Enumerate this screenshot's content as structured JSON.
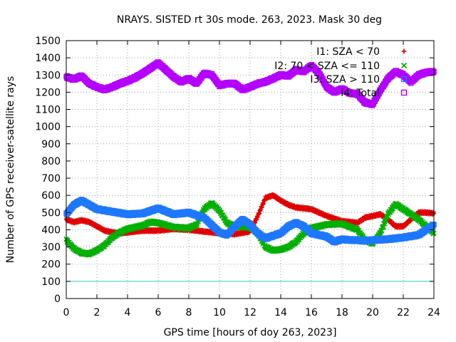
{
  "chart_data": {
    "type": "scatter",
    "title": "NRAYS. SISTED rt 30s mode. 263, 2023. Mask 30 deg",
    "xlabel": "GPS time [hours of doy 263, 2023]",
    "ylabel": "Number of GPS receiver-satellite rays",
    "xlim": [
      0,
      24
    ],
    "ylim": [
      0,
      1500
    ],
    "x_ticks": [
      0,
      2,
      4,
      6,
      8,
      10,
      12,
      14,
      16,
      18,
      20,
      22,
      24
    ],
    "y_ticks": [
      0,
      100,
      200,
      300,
      400,
      500,
      600,
      700,
      800,
      900,
      1000,
      1100,
      1200,
      1300,
      1400,
      1500
    ],
    "grid": true,
    "legend_position": "top-right",
    "threshold_line": {
      "y": 100,
      "color": "#33cccc"
    },
    "series": [
      {
        "name": "I1: SZA < 70",
        "marker": "+",
        "color": "#e00000",
        "points": [
          [
            0,
            460
          ],
          [
            0.5,
            445
          ],
          [
            1,
            455
          ],
          [
            1.5,
            445
          ],
          [
            2,
            420
          ],
          [
            2.5,
            395
          ],
          [
            3,
            385
          ],
          [
            3.5,
            380
          ],
          [
            4,
            385
          ],
          [
            5,
            395
          ],
          [
            6,
            395
          ],
          [
            7,
            405
          ],
          [
            8,
            400
          ],
          [
            9,
            390
          ],
          [
            10,
            380
          ],
          [
            11,
            375
          ],
          [
            12,
            390
          ],
          [
            12.5,
            480
          ],
          [
            13,
            585
          ],
          [
            13.5,
            600
          ],
          [
            14,
            570
          ],
          [
            14.5,
            545
          ],
          [
            15,
            530
          ],
          [
            16,
            520
          ],
          [
            17,
            480
          ],
          [
            18,
            450
          ],
          [
            19,
            440
          ],
          [
            19.5,
            470
          ],
          [
            20,
            480
          ],
          [
            20.5,
            490
          ],
          [
            21,
            460
          ],
          [
            21.5,
            420
          ],
          [
            22,
            420
          ],
          [
            22.5,
            460
          ],
          [
            23,
            500
          ],
          [
            23.5,
            500
          ],
          [
            24,
            495
          ]
        ]
      },
      {
        "name": "I2: 70 < SZA <= 110",
        "marker": "x",
        "color": "#00b000",
        "points": [
          [
            0,
            340
          ],
          [
            0.5,
            290
          ],
          [
            1,
            265
          ],
          [
            1.5,
            260
          ],
          [
            2,
            280
          ],
          [
            2.5,
            310
          ],
          [
            3,
            355
          ],
          [
            3.5,
            385
          ],
          [
            4,
            405
          ],
          [
            5,
            425
          ],
          [
            5.5,
            445
          ],
          [
            6,
            440
          ],
          [
            7,
            415
          ],
          [
            8,
            410
          ],
          [
            8.5,
            430
          ],
          [
            9,
            520
          ],
          [
            9.5,
            555
          ],
          [
            10,
            510
          ],
          [
            10.5,
            440
          ],
          [
            11,
            420
          ],
          [
            12,
            415
          ],
          [
            12.5,
            380
          ],
          [
            13,
            300
          ],
          [
            13.5,
            280
          ],
          [
            14,
            285
          ],
          [
            14.5,
            300
          ],
          [
            15,
            330
          ],
          [
            15.5,
            380
          ],
          [
            16,
            410
          ],
          [
            17,
            430
          ],
          [
            18,
            435
          ],
          [
            19,
            400
          ],
          [
            19.5,
            340
          ],
          [
            20,
            320
          ],
          [
            20.5,
            380
          ],
          [
            21,
            490
          ],
          [
            21.5,
            550
          ],
          [
            22,
            520
          ],
          [
            22.5,
            490
          ],
          [
            23,
            460
          ],
          [
            23.5,
            420
          ],
          [
            24,
            380
          ]
        ]
      },
      {
        "name": "I3: SZA > 110",
        "marker": "□",
        "color": "#1e78ff",
        "points": [
          [
            0,
            490
          ],
          [
            0.5,
            545
          ],
          [
            1,
            570
          ],
          [
            1.5,
            545
          ],
          [
            2,
            520
          ],
          [
            3,
            505
          ],
          [
            4,
            490
          ],
          [
            5,
            495
          ],
          [
            6,
            525
          ],
          [
            7,
            490
          ],
          [
            8,
            500
          ],
          [
            9,
            470
          ],
          [
            10,
            385
          ],
          [
            10.5,
            370
          ],
          [
            11,
            420
          ],
          [
            11.5,
            460
          ],
          [
            12,
            430
          ],
          [
            12.5,
            380
          ],
          [
            13,
            350
          ],
          [
            14,
            380
          ],
          [
            14.5,
            420
          ],
          [
            15,
            440
          ],
          [
            15.5,
            420
          ],
          [
            16,
            380
          ],
          [
            17,
            360
          ],
          [
            17.5,
            330
          ],
          [
            18,
            345
          ],
          [
            18.5,
            340
          ],
          [
            19,
            340
          ],
          [
            19.5,
            335
          ],
          [
            20,
            340
          ],
          [
            21,
            345
          ],
          [
            22,
            355
          ],
          [
            23,
            370
          ],
          [
            23.5,
            400
          ],
          [
            24,
            430
          ]
        ]
      },
      {
        "name": "I4: Total",
        "marker": "□",
        "color": "#b400ff",
        "points": [
          [
            0,
            1290
          ],
          [
            0.5,
            1275
          ],
          [
            1,
            1295
          ],
          [
            1.5,
            1250
          ],
          [
            2,
            1230
          ],
          [
            2.5,
            1215
          ],
          [
            3,
            1230
          ],
          [
            3.5,
            1250
          ],
          [
            4,
            1265
          ],
          [
            4.5,
            1285
          ],
          [
            5,
            1310
          ],
          [
            5.5,
            1340
          ],
          [
            6,
            1370
          ],
          [
            6.5,
            1330
          ],
          [
            7,
            1290
          ],
          [
            7.5,
            1260
          ],
          [
            8,
            1280
          ],
          [
            8.5,
            1250
          ],
          [
            9,
            1310
          ],
          [
            9.5,
            1300
          ],
          [
            10,
            1240
          ],
          [
            10.5,
            1250
          ],
          [
            11,
            1250
          ],
          [
            11.5,
            1215
          ],
          [
            12,
            1230
          ],
          [
            12.5,
            1250
          ],
          [
            13,
            1260
          ],
          [
            13.5,
            1280
          ],
          [
            14,
            1300
          ],
          [
            14.5,
            1295
          ],
          [
            15,
            1330
          ],
          [
            15.5,
            1320
          ],
          [
            16,
            1355
          ],
          [
            16.5,
            1310
          ],
          [
            17,
            1230
          ],
          [
            17.5,
            1200
          ],
          [
            18,
            1220
          ],
          [
            18.5,
            1195
          ],
          [
            19,
            1190
          ],
          [
            19.5,
            1140
          ],
          [
            20,
            1130
          ],
          [
            20.5,
            1210
          ],
          [
            21,
            1280
          ],
          [
            21.5,
            1320
          ],
          [
            22,
            1300
          ],
          [
            22.5,
            1260
          ],
          [
            23,
            1300
          ],
          [
            23.5,
            1315
          ],
          [
            24,
            1320
          ]
        ]
      }
    ]
  }
}
